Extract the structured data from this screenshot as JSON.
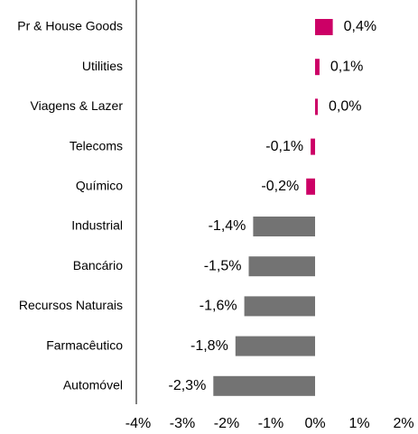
{
  "chart_data": {
    "type": "hbar",
    "categories": [
      "Pr & House Goods",
      "Utilities",
      "Viagens & Lazer",
      "Telecoms",
      "Químico",
      "Industrial",
      "Bancário",
      "Recursos Naturais",
      "Farmacêutico",
      "Automóvel"
    ],
    "values": [
      0.4,
      0.1,
      0.0,
      -0.1,
      -0.2,
      -1.4,
      -1.5,
      -1.6,
      -1.8,
      -2.3
    ],
    "value_labels": [
      "0,4%",
      "0,1%",
      "0,0%",
      "-0,1%",
      "-0,2%",
      "-1,4%",
      "-1,5%",
      "-1,6%",
      "-1,8%",
      "-2,3%"
    ],
    "colors": [
      "#cc0066",
      "#cc0066",
      "#cc0066",
      "#cc0066",
      "#cc0066",
      "#737373",
      "#737373",
      "#737373",
      "#737373",
      "#737373"
    ],
    "xlim": [
      -4,
      2
    ],
    "xticks": [
      {
        "value": -4,
        "label": "-4%"
      },
      {
        "value": -3,
        "label": "-3%"
      },
      {
        "value": -2,
        "label": "-2%"
      },
      {
        "value": -1,
        "label": "-1%"
      },
      {
        "value": 0,
        "label": "0%"
      },
      {
        "value": 1,
        "label": "1%"
      },
      {
        "value": 2,
        "label": "2%"
      }
    ],
    "grid": false
  }
}
